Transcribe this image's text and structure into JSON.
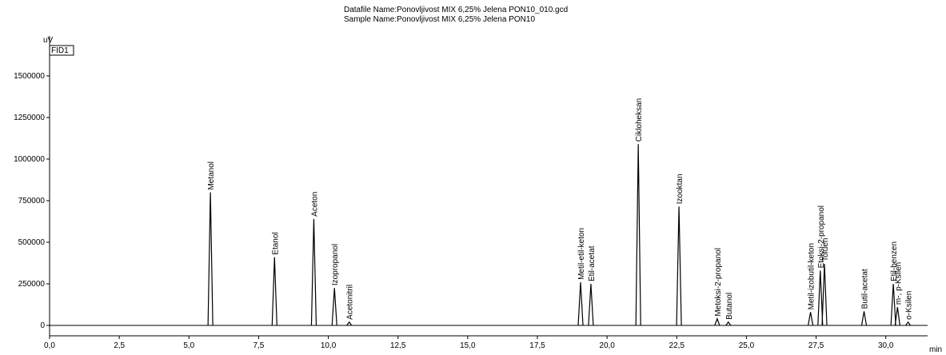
{
  "chart_data": {
    "type": "chromatogram",
    "title": "Datafile Name:Ponovljivost MIX 6,25% Jelena PON10_010.gcd",
    "subtitle": "Sample Name:Ponovljivost MIX 6,25% Jelena PON10",
    "ylabel": "uV",
    "xlabel": "min",
    "channel": "FID1",
    "color": "#000000",
    "xlim": [
      0,
      31.5
    ],
    "ylim": [
      -62500,
      1740000
    ],
    "xticks": [
      {
        "value": 0,
        "label": "0,0"
      },
      {
        "value": 2.5,
        "label": "2,5"
      },
      {
        "value": 5,
        "label": "5,0"
      },
      {
        "value": 7.5,
        "label": "7,5"
      },
      {
        "value": 10,
        "label": "10,0"
      },
      {
        "value": 12.5,
        "label": "12,5"
      },
      {
        "value": 15,
        "label": "15,0"
      },
      {
        "value": 17.5,
        "label": "17,5"
      },
      {
        "value": 20,
        "label": "20,0"
      },
      {
        "value": 22.5,
        "label": "22,5"
      },
      {
        "value": 25,
        "label": "25,0"
      },
      {
        "value": 27.5,
        "label": "27,5"
      },
      {
        "value": 30,
        "label": "30,0"
      }
    ],
    "yticks": [
      0,
      250000,
      500000,
      750000,
      1000000,
      1250000,
      1500000
    ],
    "peaks": [
      {
        "name": "Metanol",
        "x": 5.77,
        "value": 800000
      },
      {
        "name": "Etanol",
        "x": 8.07,
        "value": 410000
      },
      {
        "name": "Aceton",
        "x": 9.48,
        "value": 640000
      },
      {
        "name": "Izopropanol",
        "x": 10.22,
        "value": 225000
      },
      {
        "name": "Acetonitril",
        "x": 10.75,
        "value": 20000
      },
      {
        "name": "Metil-etil-keton",
        "x": 19.05,
        "value": 260000
      },
      {
        "name": "Etil-acetat",
        "x": 19.42,
        "value": 250000
      },
      {
        "name": "Cikloheksan",
        "x": 21.12,
        "value": 1090000
      },
      {
        "name": "Izooktan",
        "x": 22.58,
        "value": 715000
      },
      {
        "name": "Metoksi-2-propanol",
        "x": 23.95,
        "value": 40000
      },
      {
        "name": "Butanol",
        "x": 24.35,
        "value": 20000
      },
      {
        "name": "Metil-izobutil-keton",
        "x": 27.3,
        "value": 80000
      },
      {
        "name": "Etoksi-2-propanol",
        "x": 27.65,
        "value": 330000
      },
      {
        "name": "Toluen",
        "x": 27.8,
        "value": 370000
      },
      {
        "name": "Butil-acetat",
        "x": 29.22,
        "value": 85000
      },
      {
        "name": "Etil-benzen",
        "x": 30.27,
        "value": 250000
      },
      {
        "name": "m-, p-Ksilen",
        "x": 30.42,
        "value": 110000
      },
      {
        "name": "o-Ksilen",
        "x": 30.8,
        "value": 20000
      }
    ]
  }
}
